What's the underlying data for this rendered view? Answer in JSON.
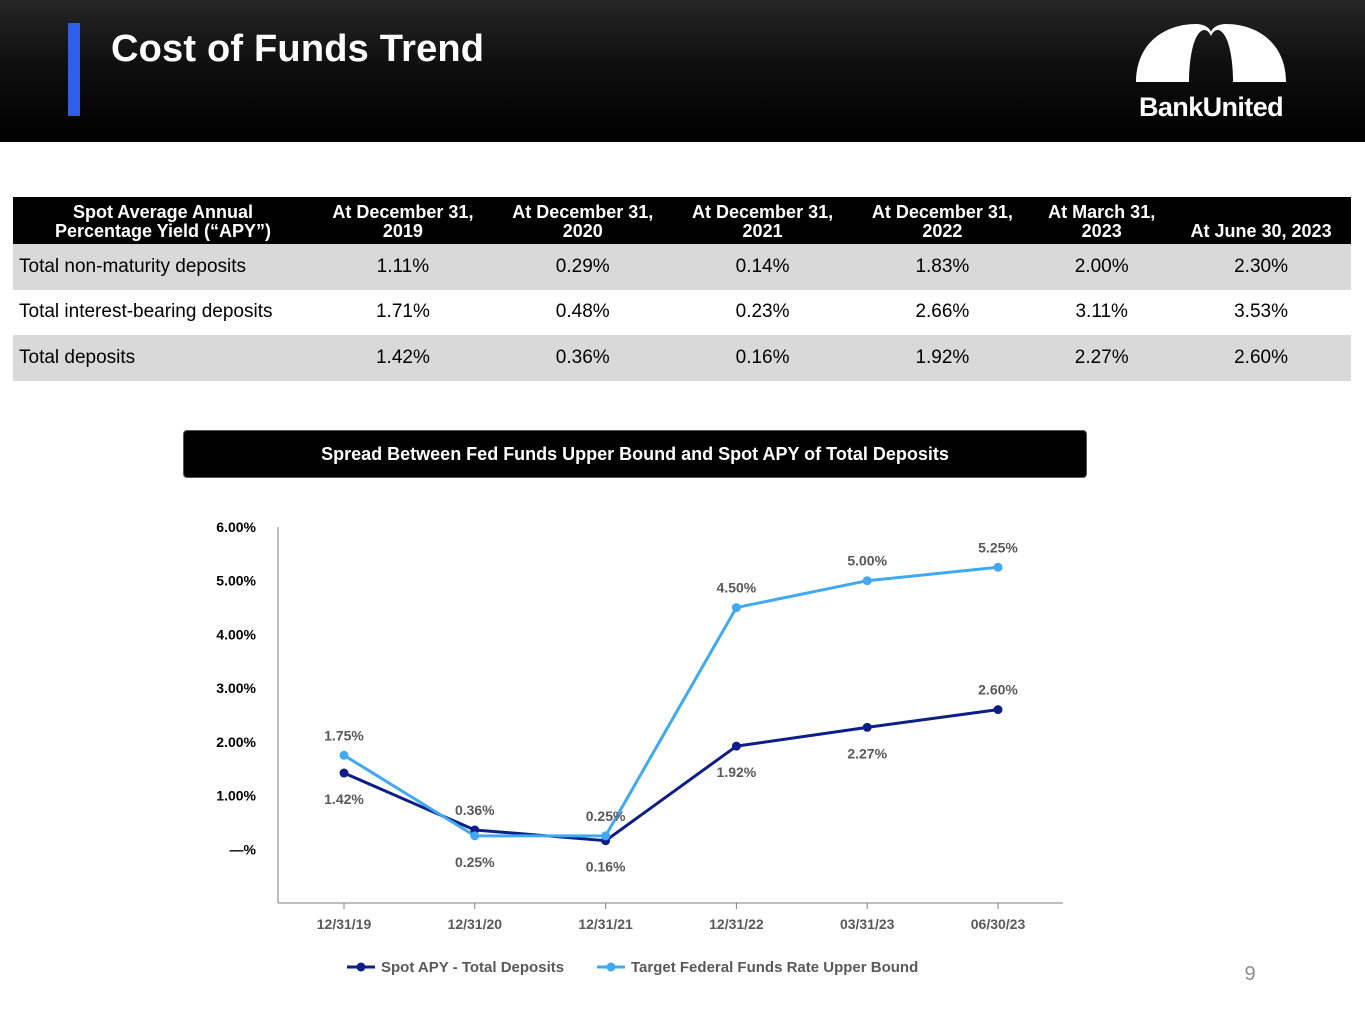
{
  "header": {
    "title": "Cost of Funds Trend",
    "logo_text": "BankUnited",
    "accent_color": "#2d5fea"
  },
  "table": {
    "headers": [
      [
        "Spot Average Annual",
        "Percentage Yield (“APY”)"
      ],
      [
        "At December 31,",
        "2019"
      ],
      [
        "At December 31,",
        "2020"
      ],
      [
        "At December 31,",
        "2021"
      ],
      [
        "At December 31,",
        "2022"
      ],
      [
        "At March 31,",
        "2023"
      ],
      [
        "At June 30, 2023"
      ]
    ],
    "rows": [
      {
        "label": "Total non-maturity deposits",
        "values": [
          "1.11%",
          "0.29%",
          "0.14%",
          "1.83%",
          "2.00%",
          "2.30%"
        ]
      },
      {
        "label": "Total interest-bearing deposits",
        "values": [
          "1.71%",
          "0.48%",
          "0.23%",
          "2.66%",
          "3.11%",
          "3.53%"
        ]
      },
      {
        "label": "Total deposits",
        "values": [
          "1.42%",
          "0.36%",
          "0.16%",
          "1.92%",
          "2.27%",
          "2.60%"
        ]
      }
    ]
  },
  "chart_data": {
    "type": "line",
    "title": "Spread Between Fed Funds Upper Bound and Spot APY of Total Deposits",
    "categories": [
      "12/31/19",
      "12/31/20",
      "12/31/21",
      "12/31/22",
      "03/31/23",
      "06/30/23"
    ],
    "ylim": [
      -1,
      6
    ],
    "yticks": [
      0,
      1,
      2,
      3,
      4,
      5,
      6
    ],
    "ytick_labels": [
      "—%",
      "1.00%",
      "2.00%",
      "3.00%",
      "4.00%",
      "5.00%",
      "6.00%"
    ],
    "grid": false,
    "legend_position": "bottom",
    "series": [
      {
        "name": "Spot APY - Total Deposits",
        "color": "#0d1f87",
        "values": [
          1.42,
          0.36,
          0.16,
          1.92,
          2.27,
          2.6
        ],
        "labels": [
          "1.42%",
          "0.36%",
          "0.16%",
          "1.92%",
          "2.27%",
          "2.60%"
        ],
        "label_side": [
          "below",
          "above",
          "below",
          "below",
          "below",
          "above"
        ]
      },
      {
        "name": "Target Federal Funds Rate Upper Bound",
        "color": "#41a9ef",
        "values": [
          1.75,
          0.25,
          0.25,
          4.5,
          5.0,
          5.25
        ],
        "labels": [
          "1.75%",
          "0.25%",
          "0.25%",
          "4.50%",
          "5.00%",
          "5.25%"
        ],
        "label_side": [
          "above",
          "below",
          "above",
          "above",
          "above",
          "above"
        ]
      }
    ]
  },
  "page_number": "9"
}
